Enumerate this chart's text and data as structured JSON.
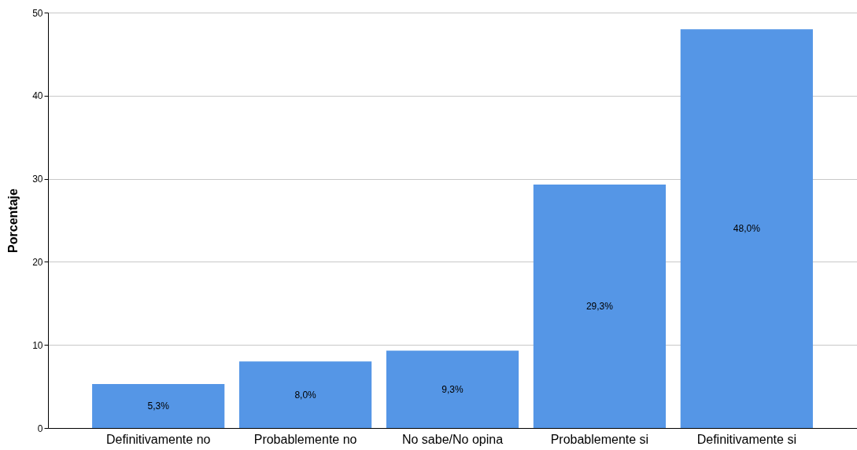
{
  "chart_data": {
    "type": "bar",
    "ylabel": "Porcentaje",
    "categories": [
      "Definitivamente no",
      "Probablemente no",
      "No sabe/No opina",
      "Probablemente si",
      "Definitivamente si"
    ],
    "values": [
      5.3,
      8.0,
      9.3,
      29.3,
      48.0
    ],
    "value_labels": [
      "5,3%",
      "8,0%",
      "9,3%",
      "29,3%",
      "48,0%"
    ],
    "color": "#5596e6",
    "ylim": [
      0,
      50
    ],
    "yticks": [
      0,
      10,
      20,
      30,
      40,
      50
    ],
    "grid": "y"
  }
}
